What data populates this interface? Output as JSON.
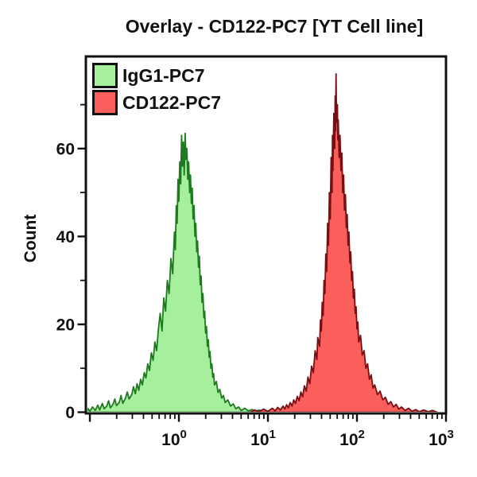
{
  "chart_data": {
    "type": "area",
    "title": "Overlay - CD122-PC7 [YT Cell line]",
    "xlabel": "",
    "ylabel": "Count",
    "background_color": "#ffffff",
    "frame_color": "#111111",
    "grid": false,
    "x_axis": {
      "scale": "log10",
      "min_log": -1.045,
      "max_log": 3.0,
      "major_ticks": [
        {
          "log": -1,
          "label": null
        },
        {
          "log": 0,
          "label": {
            "base": "10",
            "exp": "0"
          }
        },
        {
          "log": 1,
          "label": {
            "base": "10",
            "exp": "1"
          }
        },
        {
          "log": 2,
          "label": {
            "base": "10",
            "exp": "2"
          }
        },
        {
          "log": 3,
          "label": {
            "base": "10",
            "exp": "3"
          }
        }
      ],
      "minor_ticks_log": [
        -0.699,
        -0.523,
        -0.398,
        -0.301,
        -0.222,
        -0.155,
        -0.097,
        -0.046,
        0.301,
        0.477,
        0.602,
        0.699,
        0.778,
        0.845,
        0.903,
        0.954,
        1.301,
        1.477,
        1.602,
        1.699,
        1.778,
        1.845,
        1.903,
        1.954,
        2.301,
        2.477,
        2.602,
        2.699,
        2.778,
        2.845,
        2.903,
        2.954
      ]
    },
    "y_axis": {
      "label": "Count",
      "min": 0,
      "max": 80.7,
      "major_ticks": [
        {
          "value": 0,
          "label": "0"
        },
        {
          "value": 20,
          "label": "20"
        },
        {
          "value": 40,
          "label": "40"
        },
        {
          "value": 60,
          "label": "60"
        }
      ],
      "minor_ticks": [
        10,
        30,
        50,
        70
      ]
    },
    "legend": {
      "position": "top-left",
      "items": [
        {
          "label": "IgG1-PC7",
          "fill": "#a5ef9d",
          "stroke": "#1e7a1e"
        },
        {
          "label": "CD122-PC7",
          "fill": "#fb5f5c",
          "stroke": "#7a0e12"
        }
      ]
    },
    "series": [
      {
        "name": "IgG1-PC7",
        "fill": "#a5ef9d",
        "stroke": "#1e7a1e",
        "peak_x": 1.1,
        "peak_count": 63.5,
        "points": [
          [
            -1.04,
            0.0
          ],
          [
            -1.02,
            0.8
          ],
          [
            -1.0,
            0.2
          ],
          [
            -0.97,
            1.2
          ],
          [
            -0.94,
            0.4
          ],
          [
            -0.91,
            1.6
          ],
          [
            -0.89,
            0.5
          ],
          [
            -0.86,
            2.0
          ],
          [
            -0.84,
            0.8
          ],
          [
            -0.81,
            1.4
          ],
          [
            -0.79,
            2.6
          ],
          [
            -0.77,
            1.0
          ],
          [
            -0.74,
            1.8
          ],
          [
            -0.72,
            3.0
          ],
          [
            -0.7,
            1.5
          ],
          [
            -0.67,
            2.2
          ],
          [
            -0.65,
            3.8
          ],
          [
            -0.63,
            2.0
          ],
          [
            -0.6,
            3.2
          ],
          [
            -0.58,
            4.6
          ],
          [
            -0.56,
            3.0
          ],
          [
            -0.53,
            4.0
          ],
          [
            -0.51,
            5.8
          ],
          [
            -0.49,
            4.2
          ],
          [
            -0.47,
            6.5
          ],
          [
            -0.45,
            5.0
          ],
          [
            -0.43,
            7.5
          ],
          [
            -0.41,
            6.2
          ],
          [
            -0.39,
            9.0
          ],
          [
            -0.37,
            7.8
          ],
          [
            -0.35,
            11.0
          ],
          [
            -0.33,
            9.5
          ],
          [
            -0.31,
            13.5
          ],
          [
            -0.29,
            11.8
          ],
          [
            -0.27,
            16.0
          ],
          [
            -0.25,
            14.0
          ],
          [
            -0.23,
            19.0
          ],
          [
            -0.21,
            22.5
          ],
          [
            -0.19,
            18.5
          ],
          [
            -0.17,
            26.0
          ],
          [
            -0.15,
            23.0
          ],
          [
            -0.13,
            30.0
          ],
          [
            -0.11,
            27.0
          ],
          [
            -0.09,
            35.0
          ],
          [
            -0.07,
            31.5
          ],
          [
            -0.05,
            41.0
          ],
          [
            -0.04,
            37.0
          ],
          [
            -0.03,
            47.0
          ],
          [
            -0.02,
            43.0
          ],
          [
            -0.01,
            53.0
          ],
          [
            0.0,
            48.0
          ],
          [
            0.01,
            57.0
          ],
          [
            0.02,
            52.0
          ],
          [
            0.03,
            63.0
          ],
          [
            0.04,
            56.0
          ],
          [
            0.05,
            61.5
          ],
          [
            0.06,
            54.0
          ],
          [
            0.07,
            63.5
          ],
          [
            0.08,
            57.5
          ],
          [
            0.09,
            60.0
          ],
          [
            0.1,
            53.0
          ],
          [
            0.11,
            57.0
          ],
          [
            0.12,
            50.0
          ],
          [
            0.13,
            54.0
          ],
          [
            0.14,
            47.5
          ],
          [
            0.15,
            51.0
          ],
          [
            0.16,
            44.0
          ],
          [
            0.17,
            47.0
          ],
          [
            0.18,
            40.0
          ],
          [
            0.19,
            43.0
          ],
          [
            0.2,
            36.5
          ],
          [
            0.21,
            39.0
          ],
          [
            0.22,
            33.0
          ],
          [
            0.23,
            35.5
          ],
          [
            0.24,
            29.0
          ],
          [
            0.25,
            31.0
          ],
          [
            0.26,
            25.0
          ],
          [
            0.27,
            27.0
          ],
          [
            0.28,
            21.5
          ],
          [
            0.29,
            23.0
          ],
          [
            0.3,
            18.0
          ],
          [
            0.31,
            19.5
          ],
          [
            0.32,
            15.0
          ],
          [
            0.33,
            16.5
          ],
          [
            0.34,
            12.5
          ],
          [
            0.35,
            13.8
          ],
          [
            0.36,
            10.0
          ],
          [
            0.37,
            11.0
          ],
          [
            0.38,
            8.0
          ],
          [
            0.39,
            8.8
          ],
          [
            0.4,
            6.2
          ],
          [
            0.42,
            7.0
          ],
          [
            0.44,
            4.5
          ],
          [
            0.46,
            5.2
          ],
          [
            0.48,
            3.2
          ],
          [
            0.5,
            3.8
          ],
          [
            0.52,
            2.2
          ],
          [
            0.55,
            2.8
          ],
          [
            0.58,
            1.4
          ],
          [
            0.61,
            1.9
          ],
          [
            0.64,
            0.8
          ],
          [
            0.67,
            1.2
          ],
          [
            0.7,
            0.4
          ],
          [
            0.74,
            0.9
          ],
          [
            0.78,
            0.3
          ],
          [
            0.82,
            0.6
          ],
          [
            0.86,
            0.2
          ],
          [
            0.9,
            0.5
          ],
          [
            0.95,
            0.1
          ],
          [
            1.0,
            0.3
          ],
          [
            1.05,
            0.1
          ],
          [
            1.1,
            0.4
          ],
          [
            1.15,
            0.1
          ],
          [
            1.2,
            0.3
          ],
          [
            1.25,
            0.0
          ]
        ]
      },
      {
        "name": "CD122-PC7",
        "fill": "#fb5f5c",
        "stroke": "#7a0e12",
        "peak_x": 55,
        "peak_count": 77,
        "points": [
          [
            0.8,
            0.0
          ],
          [
            0.85,
            0.5
          ],
          [
            0.9,
            0.1
          ],
          [
            0.95,
            0.7
          ],
          [
            1.0,
            0.2
          ],
          [
            1.05,
            0.9
          ],
          [
            1.08,
            0.3
          ],
          [
            1.11,
            1.1
          ],
          [
            1.14,
            0.5
          ],
          [
            1.17,
            1.4
          ],
          [
            1.19,
            0.7
          ],
          [
            1.21,
            1.7
          ],
          [
            1.23,
            1.0
          ],
          [
            1.25,
            2.2
          ],
          [
            1.27,
            1.4
          ],
          [
            1.29,
            2.8
          ],
          [
            1.31,
            2.0
          ],
          [
            1.33,
            3.6
          ],
          [
            1.35,
            2.6
          ],
          [
            1.37,
            4.6
          ],
          [
            1.39,
            3.5
          ],
          [
            1.41,
            6.0
          ],
          [
            1.43,
            4.8
          ],
          [
            1.45,
            8.0
          ],
          [
            1.47,
            6.5
          ],
          [
            1.49,
            10.5
          ],
          [
            1.51,
            9.0
          ],
          [
            1.53,
            14.0
          ],
          [
            1.55,
            12.0
          ],
          [
            1.56,
            17.0
          ],
          [
            1.58,
            15.0
          ],
          [
            1.59,
            21.0
          ],
          [
            1.6,
            18.5
          ],
          [
            1.61,
            25.0
          ],
          [
            1.62,
            22.0
          ],
          [
            1.63,
            30.0
          ],
          [
            1.64,
            27.0
          ],
          [
            1.65,
            36.0
          ],
          [
            1.66,
            32.0
          ],
          [
            1.67,
            43.0
          ],
          [
            1.68,
            38.0
          ],
          [
            1.69,
            50.0
          ],
          [
            1.7,
            44.0
          ],
          [
            1.71,
            58.0
          ],
          [
            1.72,
            50.0
          ],
          [
            1.725,
            63.0
          ],
          [
            1.73,
            55.0
          ],
          [
            1.74,
            68.0
          ],
          [
            1.75,
            60.0
          ],
          [
            1.755,
            72.0
          ],
          [
            1.76,
            64.0
          ],
          [
            1.765,
            77.0
          ],
          [
            1.77,
            66.0
          ],
          [
            1.78,
            70.0
          ],
          [
            1.785,
            62.0
          ],
          [
            1.79,
            66.5
          ],
          [
            1.8,
            58.0
          ],
          [
            1.81,
            63.0
          ],
          [
            1.82,
            55.0
          ],
          [
            1.83,
            59.0
          ],
          [
            1.84,
            50.0
          ],
          [
            1.85,
            54.0
          ],
          [
            1.86,
            46.0
          ],
          [
            1.87,
            49.5
          ],
          [
            1.88,
            42.0
          ],
          [
            1.89,
            45.0
          ],
          [
            1.9,
            38.0
          ],
          [
            1.91,
            41.0
          ],
          [
            1.92,
            34.0
          ],
          [
            1.93,
            36.5
          ],
          [
            1.94,
            30.0
          ],
          [
            1.95,
            32.0
          ],
          [
            1.96,
            26.0
          ],
          [
            1.97,
            28.0
          ],
          [
            1.98,
            22.5
          ],
          [
            1.99,
            24.0
          ],
          [
            2.0,
            19.0
          ],
          [
            2.01,
            20.5
          ],
          [
            2.02,
            16.0
          ],
          [
            2.04,
            17.5
          ],
          [
            2.06,
            13.0
          ],
          [
            2.08,
            14.0
          ],
          [
            2.1,
            10.0
          ],
          [
            2.12,
            11.0
          ],
          [
            2.14,
            7.5
          ],
          [
            2.16,
            8.5
          ],
          [
            2.18,
            5.5
          ],
          [
            2.2,
            6.2
          ],
          [
            2.23,
            4.0
          ],
          [
            2.26,
            4.8
          ],
          [
            2.29,
            2.8
          ],
          [
            2.32,
            3.4
          ],
          [
            2.35,
            1.8
          ],
          [
            2.38,
            2.4
          ],
          [
            2.41,
            1.2
          ],
          [
            2.44,
            1.8
          ],
          [
            2.47,
            0.7
          ],
          [
            2.5,
            1.2
          ],
          [
            2.54,
            0.4
          ],
          [
            2.58,
            0.9
          ],
          [
            2.62,
            0.2
          ],
          [
            2.66,
            0.6
          ],
          [
            2.7,
            0.1
          ],
          [
            2.75,
            0.5
          ],
          [
            2.8,
            0.1
          ],
          [
            2.85,
            0.4
          ],
          [
            2.9,
            0.0
          ]
        ]
      }
    ]
  }
}
